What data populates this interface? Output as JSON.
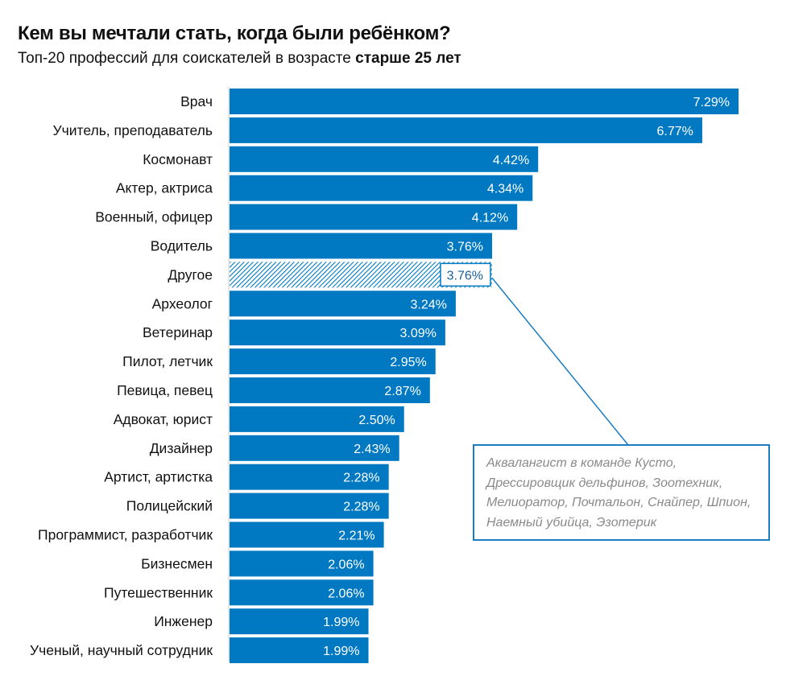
{
  "title": "Кем вы мечтали стать, когда были ребёнком?",
  "subtitle": {
    "prefix": "Топ-20 профессий для соискателей в возрасте ",
    "bold": "старше 25 лет"
  },
  "colors": {
    "bar": "#0079c2",
    "hatch_line": "#0079c2",
    "hatch_bg": "#ffffff",
    "callout_border": "#1a7cc1",
    "callout_text": "#8a8a8a"
  },
  "chart_data": {
    "type": "bar",
    "orientation": "horizontal",
    "categories": [
      "Врач",
      "Учитель, преподаватель",
      "Космонавт",
      "Актер, актриса",
      "Военный, офицер",
      "Водитель",
      "Другое",
      "Археолог",
      "Ветеринар",
      "Пилот, летчик",
      "Певица, певец",
      "Адвокат, юрист",
      "Дизайнер",
      "Артист, артистка",
      "Полицейский",
      "Программист, разработчик",
      "Бизнесмен",
      "Путешественник",
      "Инженер",
      "Ученый, научный сотрудник"
    ],
    "values": [
      7.29,
      6.77,
      4.42,
      4.34,
      4.12,
      3.76,
      3.76,
      3.24,
      3.09,
      2.95,
      2.87,
      2.5,
      2.43,
      2.28,
      2.28,
      2.21,
      2.06,
      2.06,
      1.99,
      1.99
    ],
    "value_labels": [
      "7.29%",
      "6.77%",
      "4.42%",
      "4.34%",
      "4.12%",
      "3.76%",
      "3.76%",
      "3.24%",
      "3.09%",
      "2.95%",
      "2.87%",
      "2.50%",
      "2.43%",
      "2.28%",
      "2.28%",
      "2.21%",
      "2.06%",
      "2.06%",
      "1.99%",
      "1.99%"
    ],
    "highlight_index": 6,
    "highlight_style": "hatched",
    "title": "Кем вы мечтали стать, когда были ребёнком?",
    "xlabel": "",
    "ylabel": "",
    "xlim": [
      0,
      7.29
    ],
    "grid": false,
    "legend": "none",
    "annotation": {
      "target_category": "Другое",
      "lines": [
        "Аквалангист в команде Кусто,",
        "Дрессировщик дельфинов, Зоотехник,",
        "Мелиоратор, Почтальон, Снайпер, Шпион,",
        "Наемный убийца, Эзотерик"
      ]
    }
  }
}
